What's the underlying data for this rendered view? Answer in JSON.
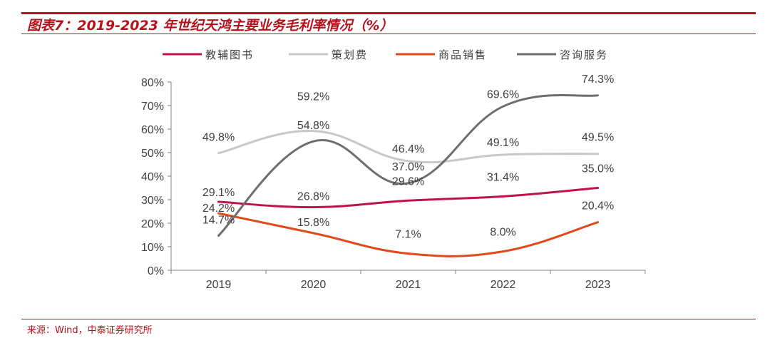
{
  "title": "图表7：2019-2023 年世纪天鸿主要业务毛利率情况（%）",
  "source": "来源：Wind，中泰证券研究所",
  "chart_data": {
    "type": "line",
    "categories": [
      "2019",
      "2020",
      "2021",
      "2022",
      "2023"
    ],
    "ylim": [
      0,
      80
    ],
    "yticks": [
      "0%",
      "10%",
      "20%",
      "30%",
      "40%",
      "50%",
      "60%",
      "70%",
      "80%"
    ],
    "legend_position": "top",
    "series": [
      {
        "name": "教辅图书",
        "color": "#c0134a",
        "values": [
          29.1,
          26.8,
          29.6,
          31.4,
          35.0
        ],
        "labels": [
          "29.1%",
          "26.8%",
          "29.6%",
          "31.4%",
          "35.0%"
        ]
      },
      {
        "name": "策划费",
        "color": "#c8c8c8",
        "values": [
          49.8,
          59.2,
          46.4,
          49.1,
          49.5
        ],
        "labels": [
          "49.8%",
          "59.2%",
          "46.4%",
          "49.1%",
          "49.5%"
        ]
      },
      {
        "name": "商品销售",
        "color": "#e04a1a",
        "values": [
          24.2,
          15.8,
          7.1,
          8.0,
          20.4
        ],
        "labels": [
          "24.2%",
          "15.8%",
          "7.1%",
          "8.0%",
          "20.4%"
        ]
      },
      {
        "name": "咨询服务",
        "color": "#6e6e6e",
        "values": [
          14.7,
          54.8,
          37.0,
          69.6,
          74.3
        ],
        "labels": [
          "14.7%",
          "54.8%",
          "37.0%",
          "69.6%",
          "74.3%"
        ]
      }
    ]
  }
}
